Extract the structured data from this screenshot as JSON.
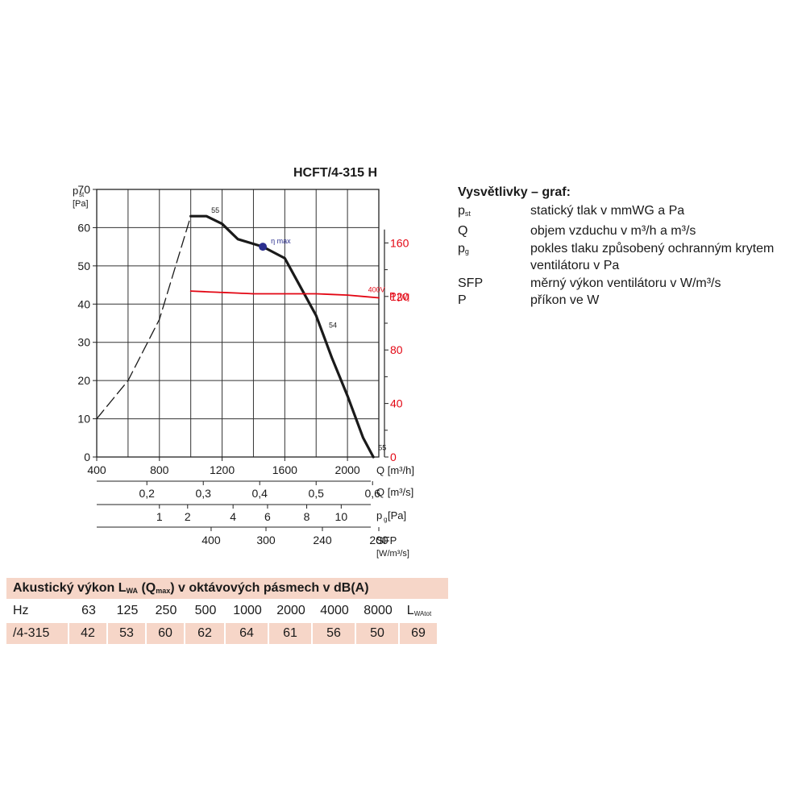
{
  "chart_data": {
    "type": "line",
    "title": "HCFT/4-315 H",
    "ylabel_main": "p",
    "ylabel_sub": "st",
    "ylabel_unit": "[Pa]",
    "y_ticks": [
      "0",
      "10",
      "20",
      "30",
      "40",
      "50",
      "60",
      "70"
    ],
    "ylim": [
      0,
      70
    ],
    "x_axis": {
      "label": "Q [m³/h]",
      "ticks": [
        "400",
        "800",
        "1200",
        "1600",
        "2000"
      ],
      "xlim": [
        400,
        2200
      ]
    },
    "q_axis": {
      "label": "Q [m³/s]",
      "ticks": [
        "0,2",
        "0,3",
        "0,4",
        "0,5",
        "0,6"
      ]
    },
    "pg_axis": {
      "label_main": "p",
      "label_sub": "g",
      "label_unit": "[Pa]",
      "ticks": [
        "1",
        "2",
        "4",
        "6",
        "8",
        "10"
      ]
    },
    "sfp_axis": {
      "label": "SFP",
      "unit": "[W/m³/s]",
      "ticks": [
        "400",
        "300",
        "240",
        "200"
      ]
    },
    "power_axis": {
      "label_main": "P",
      "label_unit": "[W]",
      "ticks": [
        "0",
        "40",
        "80",
        "120",
        "160"
      ],
      "ylim": [
        0,
        200
      ],
      "color": "#e30613"
    },
    "series": [
      {
        "name": "55",
        "style": "dashed",
        "color": "#1a1a1a",
        "points": [
          [
            400,
            10
          ],
          [
            600,
            20
          ],
          [
            800,
            36
          ],
          [
            1000,
            63
          ]
        ]
      },
      {
        "name": "55",
        "style": "solid",
        "color": "#1a1a1a",
        "points": [
          [
            1000,
            63
          ],
          [
            1100,
            63
          ],
          [
            1200,
            61
          ],
          [
            1300,
            57
          ],
          [
            1460,
            55
          ],
          [
            1600,
            52
          ],
          [
            1800,
            37
          ],
          [
            1900,
            26
          ],
          [
            2000,
            16
          ],
          [
            2100,
            5
          ],
          [
            2165,
            0
          ]
        ]
      },
      {
        "name": "400V",
        "axis": "power",
        "style": "solid",
        "color": "#e30613",
        "points": [
          [
            1000,
            124
          ],
          [
            1200,
            123
          ],
          [
            1400,
            122
          ],
          [
            1600,
            122
          ],
          [
            1800,
            122
          ],
          [
            2000,
            121
          ],
          [
            2200,
            119
          ]
        ]
      }
    ],
    "annotations": [
      {
        "text": "55",
        "x": 1100,
        "y": 63
      },
      {
        "text": "η max",
        "x": 1460,
        "y": 55
      },
      {
        "text": "54",
        "x": 1850,
        "y": 33
      },
      {
        "text": "400V",
        "x": 2080,
        "y": 122,
        "axis": "power"
      },
      {
        "text": "55",
        "x": 2165,
        "y": 1
      }
    ],
    "marker": {
      "name": "η max",
      "x": 1460,
      "y": 55,
      "color": "#2b2f8f"
    },
    "grid": true
  },
  "legend": {
    "title": "Vysvětlivky – graf:",
    "items": [
      {
        "sym": "p",
        "sub": "st",
        "desc": "statický tlak v mmWG a Pa"
      },
      {
        "sym": "Q",
        "sub": "",
        "desc": "objem vzduchu v m³/h a m³/s"
      },
      {
        "sym": "p",
        "sub": "g",
        "desc": "pokles tlaku způsobený ochranným krytem ventilátoru v Pa"
      },
      {
        "sym": "SFP",
        "sub": "",
        "desc": "měrný výkon ventilátoru v W/m³/s"
      },
      {
        "sym": "P",
        "sub": "",
        "desc": "příkon ve W"
      }
    ]
  },
  "acoustic": {
    "title_a": "Akustický výkon L",
    "title_sub1": "WA",
    "title_b": " (Q",
    "title_sub2": "max",
    "title_c": ") v oktávových pásmech v dB(A)",
    "header": [
      "Hz",
      "63",
      "125",
      "250",
      "500",
      "1000",
      "2000",
      "4000",
      "8000",
      "L"
    ],
    "header_last_sub": "WAtot",
    "values": [
      "/4-315",
      "42",
      "53",
      "60",
      "62",
      "64",
      "61",
      "56",
      "50",
      "69"
    ]
  }
}
